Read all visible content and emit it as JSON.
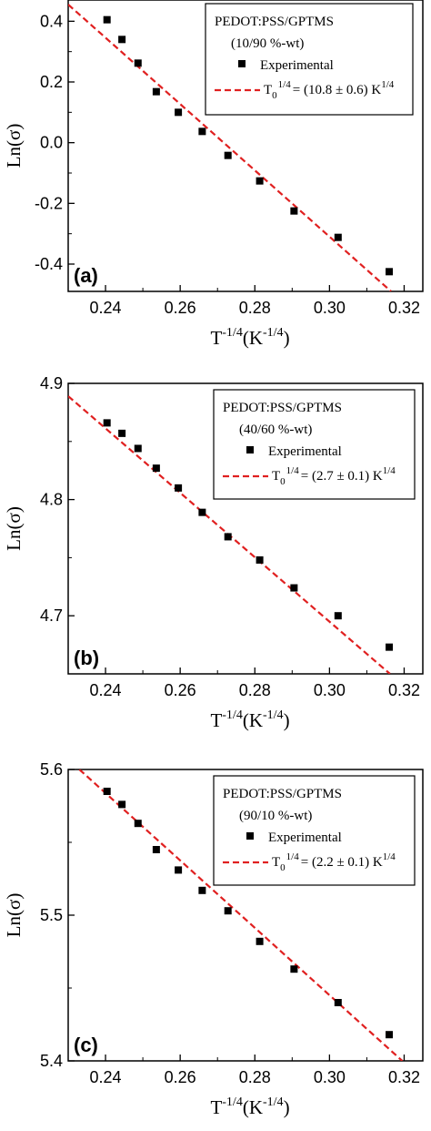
{
  "chart_data": [
    {
      "type": "scatter",
      "panel_label": "(a)",
      "xlabel": "T^-1/4 (K^-1/4)",
      "ylabel": "Ln(σ)",
      "xlim": [
        0.23,
        0.325
      ],
      "ylim": [
        -0.49,
        0.47
      ],
      "x_ticks": [
        0.24,
        0.26,
        0.28,
        0.3,
        0.32
      ],
      "y_ticks": [
        -0.4,
        -0.2,
        0.0,
        0.2,
        0.4
      ],
      "legend": {
        "title_line1": "PEDOT:PSS/GPTMS",
        "title_line2": "(10/90 %-wt)",
        "series_label": "Experimental",
        "fit_label": "T0 1/4 = (10.8 ± 0.6) K1/4",
        "placement": "top-right"
      },
      "series": [
        {
          "name": "Experimental",
          "x": [
            0.2404,
            0.2444,
            0.2487,
            0.2536,
            0.2595,
            0.2659,
            0.2728,
            0.2813,
            0.2905,
            0.3023,
            0.316
          ],
          "y": [
            0.405,
            0.34,
            0.262,
            0.168,
            0.1,
            0.037,
            -0.042,
            -0.126,
            -0.225,
            -0.312,
            -0.425
          ]
        }
      ],
      "fit_line": {
        "x": [
          0.23,
          0.3165
        ],
        "y": [
          0.455,
          -0.49
        ]
      },
      "colors": {
        "points": "#000000",
        "fit": "#e02020"
      }
    },
    {
      "type": "scatter",
      "panel_label": "(b)",
      "xlabel": "T^-1/4 (K^-1/4)",
      "ylabel": "Ln(σ)",
      "xlim": [
        0.23,
        0.325
      ],
      "ylim": [
        4.65,
        4.9
      ],
      "x_ticks": [
        0.24,
        0.26,
        0.28,
        0.3,
        0.32
      ],
      "y_ticks": [
        4.7,
        4.8,
        4.9
      ],
      "legend": {
        "title_line1": "PEDOT:PSS/GPTMS",
        "title_line2": "(40/60 %-wt)",
        "series_label": "Experimental",
        "fit_label": "T0 1/4 = (2.7 ± 0.1) K1/4",
        "placement": "top-right"
      },
      "series": [
        {
          "name": "Experimental",
          "x": [
            0.2404,
            0.2444,
            0.2487,
            0.2536,
            0.2595,
            0.2659,
            0.2728,
            0.2813,
            0.2905,
            0.3023,
            0.316
          ],
          "y": [
            4.866,
            4.857,
            4.844,
            4.827,
            4.81,
            4.789,
            4.768,
            4.748,
            4.724,
            4.7,
            4.673
          ]
        }
      ],
      "fit_line": {
        "x": [
          0.23,
          0.3162
        ],
        "y": [
          4.889,
          4.65
        ]
      },
      "colors": {
        "points": "#000000",
        "fit": "#e02020"
      }
    },
    {
      "type": "scatter",
      "panel_label": "(c)",
      "xlabel": "T^-1/4 (K^-1/4)",
      "ylabel": "Ln(σ)",
      "xlim": [
        0.23,
        0.325
      ],
      "ylim": [
        5.4,
        5.6
      ],
      "x_ticks": [
        0.24,
        0.26,
        0.28,
        0.3,
        0.32
      ],
      "y_ticks": [
        5.4,
        5.5,
        5.6
      ],
      "legend": {
        "title_line1": "PEDOT:PSS/GPTMS",
        "title_line2": "(90/10 %-wt)",
        "series_label": "Experimental",
        "fit_label": "T0 1/4 = (2.2 ± 0.1) K1/4",
        "placement": "top-right"
      },
      "series": [
        {
          "name": "Experimental",
          "x": [
            0.2404,
            0.2444,
            0.2487,
            0.2536,
            0.2595,
            0.2659,
            0.2728,
            0.2813,
            0.2905,
            0.3023,
            0.316
          ],
          "y": [
            5.585,
            5.576,
            5.563,
            5.545,
            5.531,
            5.517,
            5.503,
            5.482,
            5.463,
            5.44,
            5.418
          ]
        }
      ],
      "fit_line": {
        "x": [
          0.233,
          0.3195
        ],
        "y": [
          5.6,
          5.4
        ]
      },
      "colors": {
        "points": "#000000",
        "fit": "#e02020"
      }
    }
  ]
}
